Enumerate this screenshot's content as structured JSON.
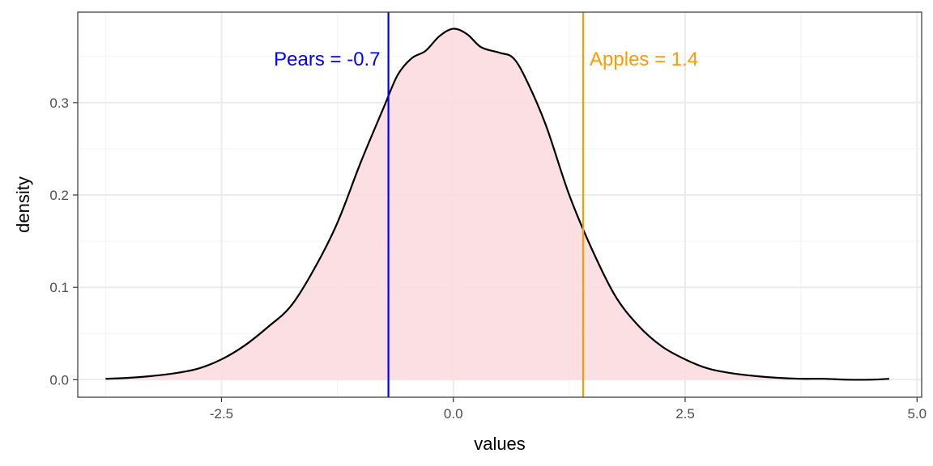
{
  "chart_data": {
    "type": "area",
    "xlabel": "values",
    "ylabel": "density",
    "xlim": [
      -4.05,
      5.05
    ],
    "ylim": [
      -0.019,
      0.398
    ],
    "x_ticks": [
      -2.5,
      0.0,
      2.5,
      5.0
    ],
    "x_tick_labels": [
      "-2.5",
      "0.0",
      "2.5",
      "5.0"
    ],
    "y_ticks": [
      0.0,
      0.1,
      0.2,
      0.3
    ],
    "y_tick_labels": [
      "0.0",
      "0.1",
      "0.2",
      "0.3"
    ],
    "grid": true,
    "fill_color": "#fcdbdf",
    "line_color": "#000000",
    "series": [
      {
        "x": [
          -3.75,
          -3.5,
          -3.25,
          -3.0,
          -2.75,
          -2.5,
          -2.25,
          -2.0,
          -1.75,
          -1.5,
          -1.25,
          -1.0,
          -0.75,
          -0.6,
          -0.45,
          -0.3,
          -0.15,
          0.0,
          0.15,
          0.3,
          0.5,
          0.65,
          0.8,
          1.0,
          1.25,
          1.5,
          1.75,
          2.0,
          2.25,
          2.5,
          2.75,
          3.0,
          3.25,
          3.5,
          3.75,
          4.0,
          4.25,
          4.5,
          4.7
        ],
        "y": [
          0.001,
          0.002,
          0.004,
          0.007,
          0.012,
          0.022,
          0.037,
          0.057,
          0.08,
          0.12,
          0.17,
          0.235,
          0.295,
          0.33,
          0.348,
          0.356,
          0.372,
          0.38,
          0.374,
          0.36,
          0.354,
          0.348,
          0.322,
          0.275,
          0.2,
          0.14,
          0.09,
          0.058,
          0.036,
          0.022,
          0.012,
          0.007,
          0.004,
          0.002,
          0.001,
          0.001,
          0.0,
          0.0,
          0.001
        ]
      }
    ],
    "vlines": [
      {
        "name": "Pears",
        "x": -0.7,
        "label": "Pears = -0.7",
        "color": "#0000ff",
        "label_side": "left"
      },
      {
        "name": "Apples",
        "x": 1.4,
        "label": "Apples = 1.4",
        "color": "#ff9a00",
        "label_side": "right"
      }
    ],
    "vline_label_y": 0.347
  }
}
